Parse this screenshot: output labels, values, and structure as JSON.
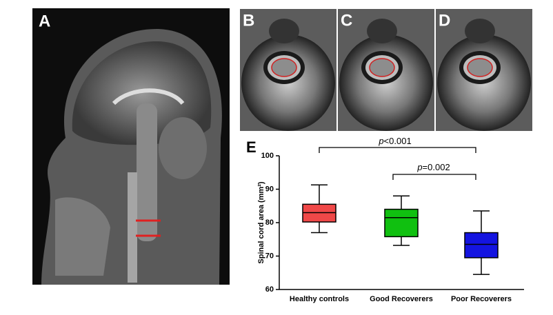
{
  "panel_labels": [
    "A",
    "B",
    "C",
    "D"
  ],
  "chart_data": {
    "type": "box",
    "panel_label": "E",
    "y_label": "Spinal cord area (mm²)",
    "categories": [
      "Healthy controls",
      "Good Recoverers",
      "Poor Recoverers"
    ],
    "boxes": [
      {
        "color": "#f04848",
        "low": 77,
        "q1": 80.2,
        "median": 83,
        "q3": 85.5,
        "high": 91.3
      },
      {
        "color": "#10c010",
        "low": 73.2,
        "q1": 75.8,
        "median": 81.5,
        "q3": 84,
        "high": 88
      },
      {
        "color": "#1414e0",
        "low": 64.5,
        "q1": 69.5,
        "median": 73.5,
        "q3": 77,
        "high": 83.5
      }
    ],
    "ylim": [
      60,
      100
    ],
    "yticks": [
      60,
      70,
      80,
      90,
      100
    ],
    "annotations": [
      {
        "symbol": "p",
        "text": "<0.001"
      },
      {
        "symbol": "p",
        "text": "=0.002"
      }
    ]
  }
}
